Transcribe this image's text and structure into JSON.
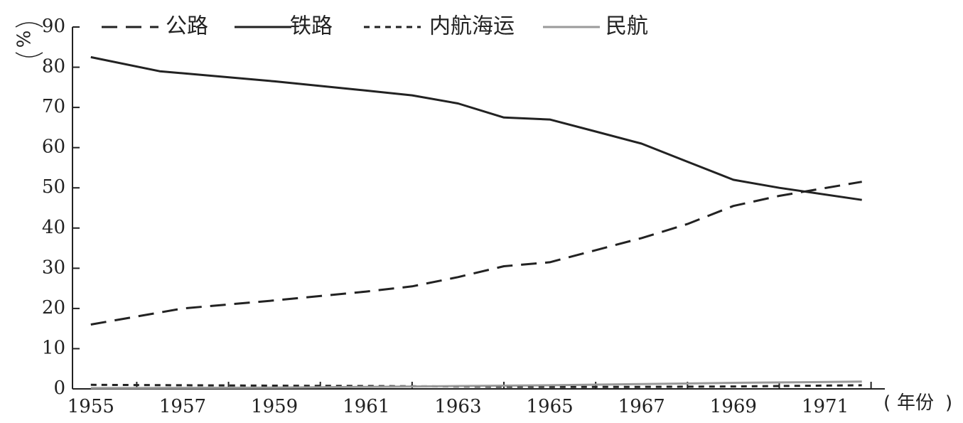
{
  "chart_data": {
    "type": "line",
    "x_tick_labels": [
      "1955",
      "1957",
      "1959",
      "1961",
      "1963",
      "1965",
      "1967",
      "1969",
      "1971"
    ],
    "y_tick_labels": [
      "0",
      "10",
      "20",
      "30",
      "40",
      "50",
      "60",
      "70",
      "80",
      "90"
    ],
    "ylim": [
      0,
      90
    ],
    "xlim": [
      1954.6,
      1972.3
    ],
    "ylabel": "%",
    "xlabel": "年份",
    "legend_position": "top",
    "grid": false,
    "series": [
      {
        "name": "公路",
        "style": "dashed",
        "color": "#222222",
        "x": [
          1955,
          1957,
          1959,
          1961,
          1962,
          1963,
          1964,
          1965,
          1966,
          1967,
          1968,
          1969,
          1970,
          1971.8
        ],
        "y": [
          16.0,
          20.0,
          22.0,
          24.2,
          25.5,
          27.8,
          30.5,
          31.5,
          34.5,
          37.5,
          41.0,
          45.5,
          48.0,
          51.5
        ]
      },
      {
        "name": "铁路",
        "style": "solid",
        "color": "#222222",
        "x": [
          1955,
          1956.5,
          1959,
          1961,
          1962,
          1963,
          1964,
          1965,
          1966,
          1967,
          1968,
          1969,
          1970,
          1971.8
        ],
        "y": [
          82.5,
          79.0,
          76.5,
          74.2,
          73.0,
          71.0,
          67.5,
          67.0,
          64.0,
          61.0,
          56.5,
          52.0,
          50.0,
          47.0
        ]
      },
      {
        "name": "内航海运",
        "style": "dotted",
        "color": "#222222",
        "x": [
          1955,
          1957,
          1959,
          1961,
          1963,
          1965,
          1967,
          1969,
          1971.8
        ],
        "y": [
          1.0,
          0.9,
          0.8,
          0.7,
          0.6,
          0.5,
          0.5,
          0.6,
          0.9
        ]
      },
      {
        "name": "民航",
        "style": "solid",
        "color": "#9a9a9a",
        "x": [
          1955,
          1959,
          1961,
          1963,
          1965,
          1967,
          1969,
          1971.8
        ],
        "y": [
          0.2,
          0.3,
          0.5,
          0.7,
          0.9,
          1.2,
          1.5,
          1.8
        ]
      }
    ]
  }
}
